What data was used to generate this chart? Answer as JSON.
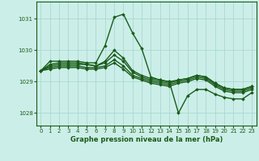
{
  "title": "Graphe pression niveau de la mer (hPa)",
  "bg_color": "#cceee8",
  "grid_color": "#aad8d2",
  "line_color": "#1a5c1a",
  "xlim": [
    -0.5,
    23.5
  ],
  "ylim": [
    1027.6,
    1031.55
  ],
  "yticks": [
    1028,
    1029,
    1030,
    1031
  ],
  "xticks": [
    0,
    1,
    2,
    3,
    4,
    5,
    6,
    7,
    8,
    9,
    10,
    11,
    12,
    13,
    14,
    15,
    16,
    17,
    18,
    19,
    20,
    21,
    22,
    23
  ],
  "series": [
    [
      1029.35,
      1029.65,
      1029.65,
      1029.65,
      1029.65,
      1029.6,
      1029.6,
      1030.15,
      1031.05,
      1031.15,
      1030.55,
      1030.05,
      1029.15,
      1029.05,
      1029.0,
      1028.0,
      1028.55,
      1028.75,
      1028.75,
      1028.6,
      1028.5,
      1028.45,
      1028.45,
      1028.65
    ],
    [
      1029.35,
      1029.5,
      1029.55,
      1029.55,
      1029.55,
      1029.55,
      1029.5,
      1029.6,
      1029.85,
      1029.65,
      1029.3,
      1029.15,
      1029.05,
      1029.0,
      1028.95,
      1029.05,
      1029.1,
      1029.2,
      1029.15,
      1028.95,
      1028.8,
      1028.75,
      1028.75,
      1028.85
    ],
    [
      1029.35,
      1029.45,
      1029.5,
      1029.5,
      1029.5,
      1029.45,
      1029.45,
      1029.5,
      1029.7,
      1029.5,
      1029.2,
      1029.1,
      1029.0,
      1028.95,
      1028.9,
      1029.0,
      1029.05,
      1029.15,
      1029.1,
      1028.9,
      1028.75,
      1028.7,
      1028.7,
      1028.8
    ],
    [
      1029.35,
      1029.4,
      1029.45,
      1029.45,
      1029.45,
      1029.4,
      1029.4,
      1029.45,
      1029.6,
      1029.4,
      1029.15,
      1029.05,
      1028.95,
      1028.9,
      1028.85,
      1028.95,
      1029.0,
      1029.1,
      1029.05,
      1028.85,
      1028.7,
      1028.65,
      1028.65,
      1028.75
    ],
    [
      1029.35,
      1029.55,
      1029.6,
      1029.6,
      1029.6,
      1029.55,
      1029.5,
      1029.65,
      1030.0,
      1029.75,
      1029.35,
      1029.2,
      1029.1,
      1029.05,
      1029.0,
      1029.05,
      1029.1,
      1029.2,
      1029.15,
      1028.95,
      1028.8,
      1028.75,
      1028.75,
      1028.85
    ]
  ]
}
